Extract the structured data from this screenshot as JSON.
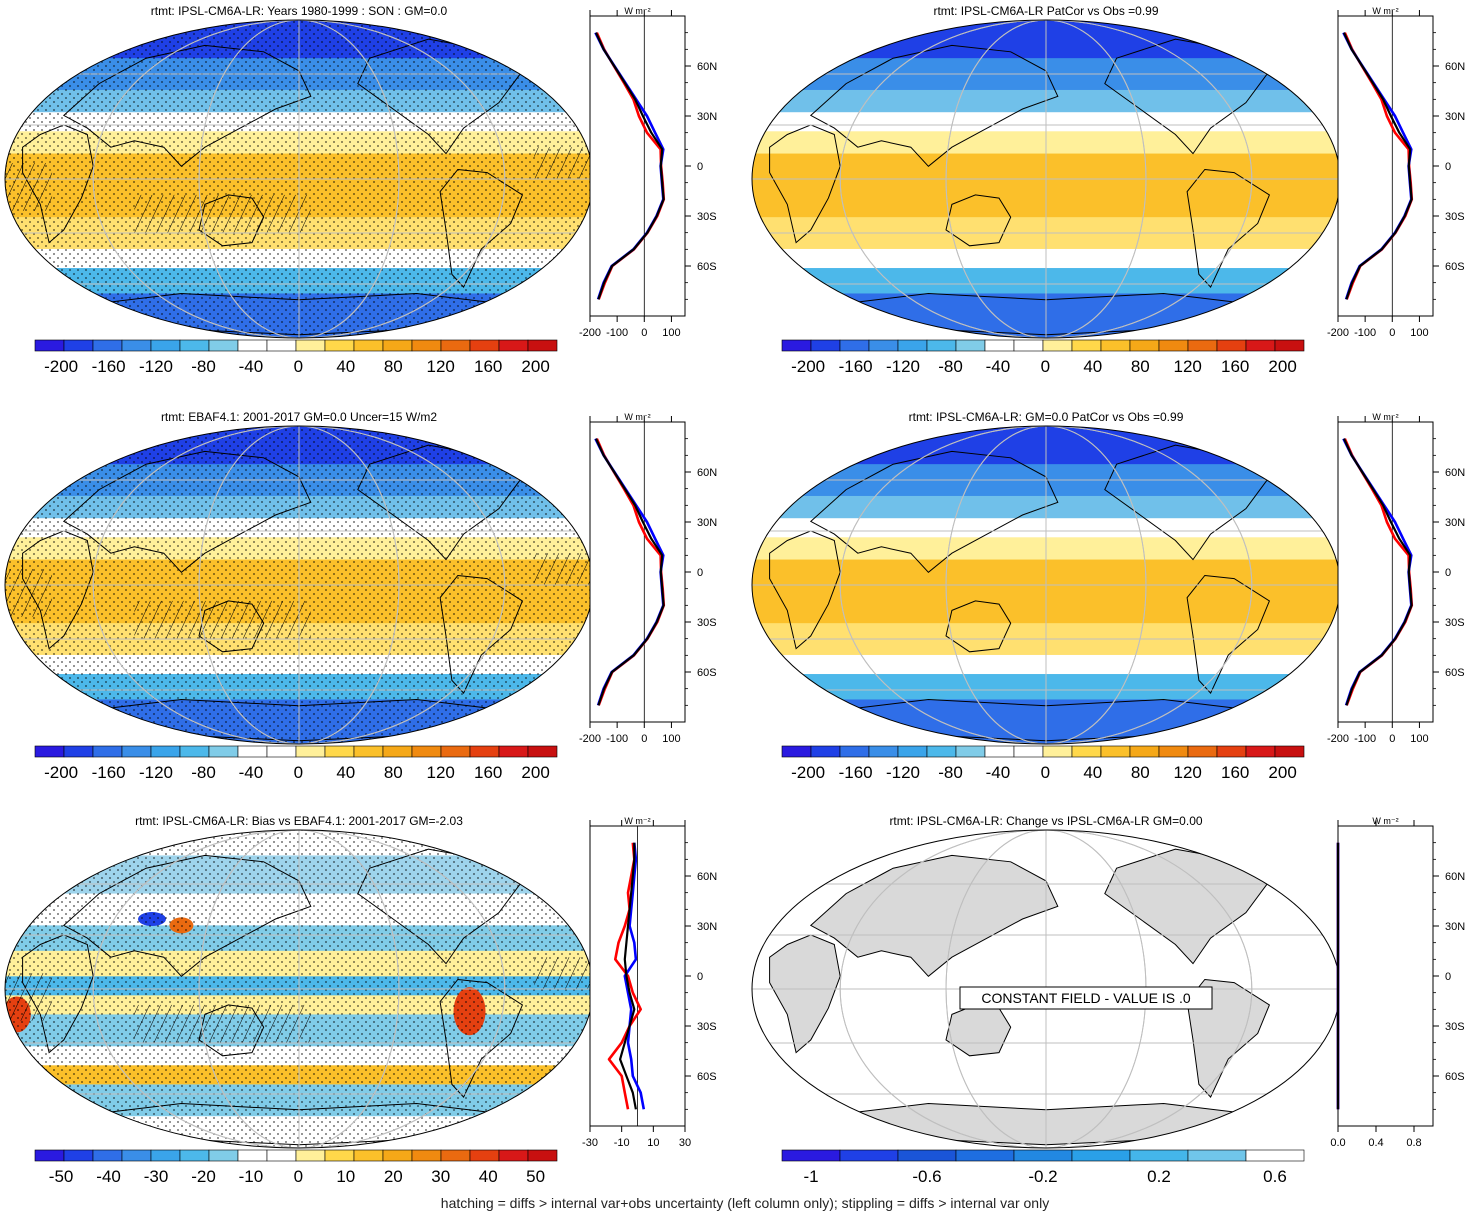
{
  "figure": {
    "footer": "hatching = diffs > internal var+obs uncertainty (left column only); stippling = diffs > internal var only",
    "unit_label": "W m⁻²",
    "colors": {
      "land_gray": "#d9d9d9",
      "ocean_white": "#ffffff",
      "model_line": "#0000ff",
      "obs_line": "#ff0000",
      "mean_line": "#000000",
      "grid": "#bfbfbf"
    }
  },
  "palettes": {
    "diverging": [
      "#2a1ae0",
      "#1f40e6",
      "#2f6ee8",
      "#3a8ee8",
      "#3aa4ea",
      "#4cb8ea",
      "#80cce8",
      "#ffffff",
      "#ffffff",
      "#fff09a",
      "#ffd84a",
      "#fbc02a",
      "#f5a818",
      "#f08a10",
      "#ea6a10",
      "#e54010",
      "#d81818",
      "#c81010"
    ],
    "sequential": [
      "#2a1ae0",
      "#1f40e6",
      "#1a55d8",
      "#1e6ee0",
      "#2288e2",
      "#2aa0e8",
      "#44b6ea",
      "#70c6ea",
      "#ffffff"
    ]
  },
  "chart_data": [
    {
      "type": "heatmap",
      "title": "rtmt: IPSL-CM6A-LR: Years 1980-1999 : SON : GM=0.0",
      "pattern": "mean",
      "stipple": true,
      "hatch": true,
      "colorbar_labels": [
        "-200",
        "-160",
        "-120",
        "-80",
        "-40",
        "0",
        "40",
        "80",
        "120",
        "160",
        "200"
      ],
      "palette": "diverging",
      "zonal": {
        "xlim": [
          -200,
          150
        ],
        "xticks": [
          "-200",
          "-100",
          "0",
          "100"
        ],
        "yticks": [
          "60N",
          "30N",
          "0",
          "30S",
          "60S"
        ],
        "lat": [
          80,
          70,
          60,
          50,
          40,
          30,
          20,
          10,
          0,
          -10,
          -20,
          -30,
          -40,
          -50,
          -60,
          -70,
          -80
        ],
        "model": [
          -180,
          -150,
          -110,
          -70,
          -30,
          10,
          40,
          70,
          60,
          65,
          70,
          45,
          10,
          -40,
          -120,
          -150,
          -170
        ],
        "obs": [
          -175,
          -148,
          -112,
          -75,
          -40,
          -20,
          10,
          60,
          62,
          68,
          72,
          48,
          12,
          -38,
          -118,
          -145,
          -168
        ],
        "mean": [
          -178,
          -150,
          -111,
          -72,
          -34,
          -5,
          26,
          66,
          61,
          66,
          71,
          46,
          11,
          -39,
          -119,
          -148,
          -169
        ]
      }
    },
    {
      "type": "heatmap",
      "title": "rtmt: IPSL-CM6A-LR PatCor vs Obs =0.99",
      "pattern": "mean",
      "stipple": false,
      "hatch": false,
      "colorbar_labels": [
        "-200",
        "-160",
        "-120",
        "-80",
        "-40",
        "0",
        "40",
        "80",
        "120",
        "160",
        "200"
      ],
      "palette": "diverging",
      "zonal": {
        "xlim": [
          -200,
          150
        ],
        "xticks": [
          "-200",
          "-100",
          "0",
          "100"
        ],
        "yticks": [
          "60N",
          "30N",
          "0",
          "30S",
          "60S"
        ],
        "lat": [
          80,
          70,
          60,
          50,
          40,
          30,
          20,
          10,
          0,
          -10,
          -20,
          -30,
          -40,
          -50,
          -60,
          -70,
          -80
        ],
        "model": [
          -180,
          -150,
          -110,
          -70,
          -30,
          10,
          40,
          70,
          60,
          65,
          70,
          45,
          10,
          -40,
          -120,
          -150,
          -170
        ],
        "obs": [
          -175,
          -148,
          -112,
          -75,
          -40,
          -20,
          10,
          60,
          62,
          68,
          72,
          48,
          12,
          -38,
          -118,
          -145,
          -168
        ],
        "mean": [
          -178,
          -150,
          -111,
          -72,
          -34,
          -5,
          26,
          66,
          61,
          66,
          71,
          46,
          11,
          -39,
          -119,
          -148,
          -169
        ]
      }
    },
    {
      "type": "heatmap",
      "title": "rtmt: EBAF4.1: 2001-2017 GM=0.0 Uncer=15 W/m2",
      "pattern": "mean",
      "stipple": true,
      "hatch": true,
      "colorbar_labels": [
        "-200",
        "-160",
        "-120",
        "-80",
        "-40",
        "0",
        "40",
        "80",
        "120",
        "160",
        "200"
      ],
      "palette": "diverging",
      "zonal": {
        "xlim": [
          -200,
          150
        ],
        "xticks": [
          "-200",
          "-100",
          "0",
          "100"
        ],
        "yticks": [
          "60N",
          "30N",
          "0",
          "30S",
          "60S"
        ],
        "lat": [
          80,
          70,
          60,
          50,
          40,
          30,
          20,
          10,
          0,
          -10,
          -20,
          -30,
          -40,
          -50,
          -60,
          -70,
          -80
        ],
        "model": [
          -180,
          -150,
          -110,
          -70,
          -30,
          10,
          40,
          70,
          60,
          65,
          70,
          45,
          10,
          -40,
          -120,
          -150,
          -170
        ],
        "obs": [
          -175,
          -148,
          -112,
          -75,
          -40,
          -20,
          10,
          60,
          62,
          68,
          72,
          48,
          12,
          -38,
          -118,
          -145,
          -168
        ],
        "mean": [
          -178,
          -150,
          -111,
          -72,
          -34,
          -5,
          26,
          66,
          61,
          66,
          71,
          46,
          11,
          -39,
          -119,
          -148,
          -169
        ]
      }
    },
    {
      "type": "heatmap",
      "title": "rtmt: IPSL-CM6A-LR: GM=0.0 PatCor vs Obs =0.99",
      "pattern": "mean",
      "stipple": false,
      "hatch": false,
      "colorbar_labels": [
        "-200",
        "-160",
        "-120",
        "-80",
        "-40",
        "0",
        "40",
        "80",
        "120",
        "160",
        "200"
      ],
      "palette": "diverging",
      "zonal": {
        "xlim": [
          -200,
          150
        ],
        "xticks": [
          "-200",
          "-100",
          "0",
          "100"
        ],
        "yticks": [
          "60N",
          "30N",
          "0",
          "30S",
          "60S"
        ],
        "lat": [
          80,
          70,
          60,
          50,
          40,
          30,
          20,
          10,
          0,
          -10,
          -20,
          -30,
          -40,
          -50,
          -60,
          -70,
          -80
        ],
        "model": [
          -180,
          -150,
          -110,
          -70,
          -30,
          10,
          40,
          70,
          60,
          65,
          70,
          45,
          10,
          -40,
          -120,
          -150,
          -170
        ],
        "obs": [
          -175,
          -148,
          -112,
          -75,
          -40,
          -20,
          10,
          60,
          62,
          68,
          72,
          48,
          12,
          -38,
          -118,
          -145,
          -168
        ],
        "mean": [
          -178,
          -150,
          -111,
          -72,
          -34,
          -5,
          26,
          66,
          61,
          66,
          71,
          46,
          11,
          -39,
          -119,
          -148,
          -169
        ]
      }
    },
    {
      "type": "heatmap",
      "title": "rtmt: IPSL-CM6A-LR: Bias vs EBAF4.1: 2001-2017  GM=-2.03",
      "pattern": "bias",
      "stipple": true,
      "hatch": true,
      "colorbar_labels": [
        "-50",
        "-40",
        "-30",
        "-20",
        "-10",
        "0",
        "10",
        "20",
        "30",
        "40",
        "50"
      ],
      "palette": "diverging",
      "zonal": {
        "xlim": [
          -30,
          30
        ],
        "xticks": [
          "-30",
          "-10",
          "10",
          "30"
        ],
        "yticks": [
          "60N",
          "30N",
          "0",
          "30S",
          "60S"
        ],
        "lat": [
          80,
          70,
          60,
          50,
          40,
          30,
          20,
          10,
          0,
          -10,
          -20,
          -30,
          -40,
          -50,
          -60,
          -70,
          -80
        ],
        "model": [
          -2,
          -1,
          -2,
          -3,
          -4,
          -5,
          -2,
          -1,
          -8,
          -6,
          -4,
          -5,
          -6,
          -4,
          -3,
          2,
          4
        ],
        "obs": [
          -3,
          -2,
          -4,
          -6,
          -5,
          -8,
          -12,
          -14,
          -6,
          -3,
          2,
          -5,
          -10,
          -18,
          -10,
          -8,
          -6
        ],
        "mean": [
          -2,
          -2,
          -3,
          -4,
          -5,
          -6,
          -7,
          -8,
          -7,
          -5,
          -2,
          -5,
          -8,
          -11,
          -7,
          -3,
          -1
        ]
      }
    },
    {
      "type": "heatmap",
      "title": "rtmt: IPSL-CM6A-LR: Change vs IPSL-CM6A-LR GM=0.00",
      "pattern": "constant",
      "stipple": false,
      "hatch": false,
      "constant_label": "CONSTANT FIELD - VALUE IS .0",
      "colorbar_labels": [
        "-1",
        "-0.6",
        "-0.2",
        "0.2",
        "0.6"
      ],
      "palette": "sequential",
      "zonal": {
        "xlim": [
          0,
          1
        ],
        "xticks": [
          "0.0",
          "0.4",
          "0.8"
        ],
        "yticks": [
          "60N",
          "30N",
          "0",
          "30S",
          "60S"
        ],
        "lat": [
          80,
          70,
          60,
          50,
          40,
          30,
          20,
          10,
          0,
          -10,
          -20,
          -30,
          -40,
          -50,
          -60,
          -70,
          -80
        ],
        "model": [
          0,
          0,
          0,
          0,
          0,
          0,
          0,
          0,
          0,
          0,
          0,
          0,
          0,
          0,
          0,
          0,
          0
        ],
        "obs": [
          0,
          0,
          0,
          0,
          0,
          0,
          0,
          0,
          0,
          0,
          0,
          0,
          0,
          0,
          0,
          0,
          0
        ],
        "mean": [
          0,
          0,
          0,
          0,
          0,
          0,
          0,
          0,
          0,
          0,
          0,
          0,
          0,
          0,
          0,
          0,
          0
        ]
      }
    }
  ]
}
